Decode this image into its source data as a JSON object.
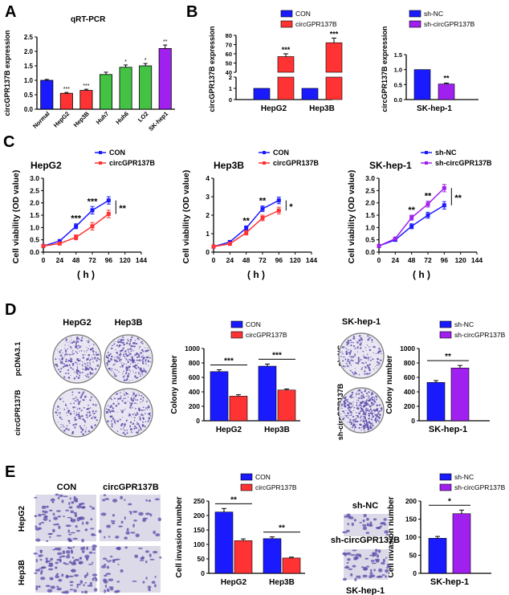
{
  "panels": {
    "A": "A",
    "B": "B",
    "C": "C",
    "D": "D",
    "E": "E"
  },
  "colors": {
    "con": "#1a1aff",
    "treat": "#ff3333",
    "green": "#44c244",
    "purple": "#a020f0",
    "stain": "#5a4aa8"
  },
  "chart_data": [
    {
      "id": "a",
      "type": "bar",
      "title": "qRT-PCR",
      "ylabel": "circGPR137B expression",
      "categories": [
        "Normal",
        "HepG2",
        "Hep3B",
        "Huh7",
        "Huh6",
        "LO2",
        "SK-hep1"
      ],
      "values": [
        1.0,
        0.55,
        0.65,
        1.2,
        1.45,
        1.5,
        2.1
      ],
      "errors": [
        0.03,
        0.03,
        0.04,
        0.08,
        0.08,
        0.08,
        0.12
      ],
      "bar_colors": [
        "#1a1aff",
        "#ff3333",
        "#ff3333",
        "#44c244",
        "#44c244",
        "#44c244",
        "#a020f0"
      ],
      "annotations": [
        "",
        "***",
        "***",
        "",
        "*",
        "*",
        "**"
      ],
      "ylim": [
        0,
        2.5
      ],
      "yticks": [
        "0.0",
        "0.5",
        "1.0",
        "1.5",
        "2.0",
        "2.5"
      ]
    },
    {
      "id": "b1",
      "type": "bar",
      "ylabel": "circGPR137B expression",
      "categories": [
        "HepG2",
        "Hep3B"
      ],
      "series": [
        {
          "name": "CON",
          "values": [
            1,
            1
          ]
        },
        {
          "name": "circGPR137B",
          "values": [
            57,
            72
          ]
        }
      ],
      "errors": [
        0,
        3,
        0,
        5
      ],
      "annotations": [
        "***",
        "***"
      ],
      "axis_break": [
        2,
        40
      ],
      "ylim": [
        0,
        80
      ],
      "yticks_lower": [
        "0",
        "1",
        "2"
      ],
      "yticks_upper": [
        "40",
        "50",
        "60",
        "70",
        "80"
      ]
    },
    {
      "id": "b2",
      "type": "bar",
      "ylabel": "circGPR137B expression",
      "categories": [
        "SK-hep-1"
      ],
      "series": [
        {
          "name": "sh-NC",
          "values": [
            1.0
          ]
        },
        {
          "name": "sh-circGPR137B",
          "values": [
            0.52
          ]
        }
      ],
      "errors": [
        0,
        0.03
      ],
      "annotations": [
        "**"
      ],
      "ylim": [
        0,
        1.5
      ],
      "yticks": [
        "0.0",
        "0.5",
        "1.0",
        "1.5"
      ]
    },
    {
      "id": "c1",
      "type": "line",
      "title": "HepG2",
      "xlabel": "( h )",
      "ylabel": "Cell viability (OD value)",
      "x": [
        0,
        24,
        48,
        72,
        96
      ],
      "series": [
        {
          "name": "CON",
          "values": [
            0.25,
            0.45,
            1.05,
            1.7,
            2.1
          ]
        },
        {
          "name": "circGPR137B",
          "values": [
            0.25,
            0.35,
            0.6,
            1.05,
            1.55
          ]
        }
      ],
      "errors": [
        0.05,
        0.05,
        0.1,
        0.15,
        0.15
      ],
      "annotations": [
        [
          "48",
          "***"
        ],
        [
          "72",
          "***"
        ]
      ],
      "bracket_label": "**",
      "xlim": [
        0,
        144
      ],
      "ylim": [
        0,
        3
      ],
      "xticks": [
        "0",
        "24",
        "48",
        "72",
        "96",
        "120",
        "144"
      ],
      "yticks": [
        "0.0",
        "0.5",
        "1.0",
        "1.5",
        "2.0",
        "2.5",
        "3.0"
      ]
    },
    {
      "id": "c2",
      "type": "line",
      "title": "Hep3B",
      "xlabel": "( h )",
      "ylabel": "Cell viability (OD value)",
      "x": [
        0,
        24,
        48,
        72,
        96
      ],
      "series": [
        {
          "name": "CON",
          "values": [
            0.3,
            0.55,
            1.3,
            2.35,
            2.8
          ]
        },
        {
          "name": "circGPR137B",
          "values": [
            0.3,
            0.45,
            1.05,
            1.85,
            2.25
          ]
        }
      ],
      "errors": [
        0.05,
        0.05,
        0.12,
        0.15,
        0.18
      ],
      "annotations": [
        [
          "48",
          "**"
        ],
        [
          "72",
          "**"
        ]
      ],
      "bracket_label": "*",
      "xlim": [
        0,
        144
      ],
      "ylim": [
        0,
        4
      ],
      "xticks": [
        "0",
        "24",
        "48",
        "72",
        "96",
        "120",
        "144"
      ],
      "yticks": [
        "0",
        "1",
        "2",
        "3",
        "4"
      ]
    },
    {
      "id": "c3",
      "type": "line",
      "title": "SK-hep-1",
      "xlabel": "( h )",
      "ylabel": "Cell viability (OD value)",
      "x": [
        0,
        24,
        48,
        72,
        96
      ],
      "series": [
        {
          "name": "sh-NC",
          "values": [
            0.25,
            0.5,
            1.05,
            1.5,
            1.9
          ]
        },
        {
          "name": "sh-circGPR137B",
          "values": [
            0.25,
            0.55,
            1.4,
            1.95,
            2.6
          ]
        }
      ],
      "errors": [
        0.05,
        0.05,
        0.1,
        0.12,
        0.15
      ],
      "annotations": [
        [
          "48",
          "**"
        ],
        [
          "72",
          "**"
        ]
      ],
      "bracket_label": "**",
      "xlim": [
        0,
        144
      ],
      "ylim": [
        0,
        3
      ],
      "xticks": [
        "0",
        "24",
        "48",
        "72",
        "96",
        "120",
        "144"
      ],
      "yticks": [
        "0.0",
        "0.5",
        "1.0",
        "1.5",
        "2.0",
        "2.5",
        "3.0"
      ]
    },
    {
      "id": "d1",
      "type": "bar",
      "ylabel": "Colony number",
      "categories": [
        "HepG2",
        "Hep3B"
      ],
      "series": [
        {
          "name": "CON",
          "values": [
            680,
            755
          ]
        },
        {
          "name": "circGPR137B",
          "values": [
            340,
            425
          ]
        }
      ],
      "errors": [
        25,
        20,
        30,
        15
      ],
      "annotations": [
        "***",
        "***"
      ],
      "ylim": [
        0,
        1000
      ],
      "yticks": [
        "0",
        "200",
        "400",
        "600",
        "800",
        "1000"
      ]
    },
    {
      "id": "d2",
      "type": "bar",
      "ylabel": "Colony number",
      "categories": [
        "SK-hep-1"
      ],
      "series": [
        {
          "name": "sh-NC",
          "values": [
            530
          ]
        },
        {
          "name": "sh-circGPR137B",
          "values": [
            730
          ]
        }
      ],
      "errors": [
        25,
        35
      ],
      "annotations": [
        "**"
      ],
      "ylim": [
        0,
        1000
      ],
      "yticks": [
        "0",
        "200",
        "400",
        "600",
        "800",
        "1000"
      ]
    },
    {
      "id": "e1",
      "type": "bar",
      "ylabel": "Cell invasion number",
      "categories": [
        "HepG2",
        "Hep3B"
      ],
      "series": [
        {
          "name": "CON",
          "values": [
            212,
            120
          ]
        },
        {
          "name": "circGPR137B",
          "values": [
            113,
            53
          ]
        }
      ],
      "errors": [
        12,
        6,
        6,
        3
      ],
      "annotations": [
        "**",
        "**"
      ],
      "ylim": [
        0,
        250
      ],
      "yticks": [
        "0",
        "50",
        "100",
        "150",
        "200",
        "250"
      ]
    },
    {
      "id": "e2",
      "type": "bar",
      "ylabel": "Cell invasion number",
      "categories": [
        "SK-hep-1"
      ],
      "series": [
        {
          "name": "sh-NC",
          "values": [
            97
          ]
        },
        {
          "name": "sh-circGPR137B",
          "values": [
            165
          ]
        }
      ],
      "errors": [
        5,
        10
      ],
      "annotations": [
        "*"
      ],
      "ylim": [
        0,
        200
      ],
      "yticks": [
        "0",
        "50",
        "100",
        "150",
        "200"
      ]
    }
  ],
  "images_d": {
    "col_labels": [
      "HepG2",
      "Hep3B"
    ],
    "row_labels": [
      "pcDNA3.1",
      "circGPR137B"
    ],
    "right_title": "SK-hep-1",
    "right_rows": [
      "sh-NC",
      "sh-circGPR137B"
    ]
  },
  "images_e": {
    "col_labels": [
      "CON",
      "circGPR137B"
    ],
    "row_labels": [
      "HepG2",
      "Hep3B"
    ],
    "right_rows": [
      "sh-NC",
      "sh-circGPR137B"
    ],
    "right_bottom": "SK-hep-1"
  }
}
